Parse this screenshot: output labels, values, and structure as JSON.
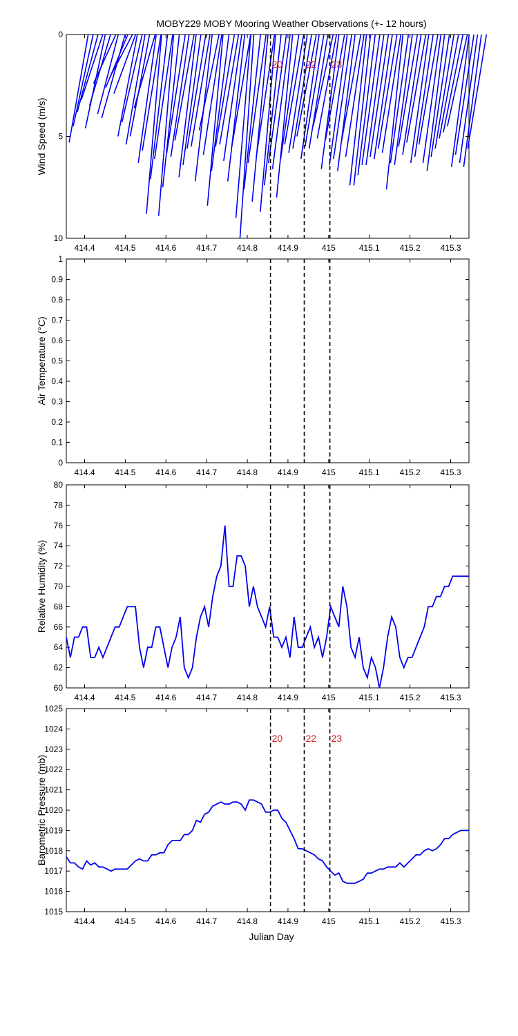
{
  "title": "MOBY229 MOBY Mooring Weather Observations (+- 12 hours)",
  "xlabel": "Julian Day",
  "xlim": [
    414.355,
    415.345
  ],
  "xticks": [
    "414.4",
    "414.5",
    "414.6",
    "414.7",
    "414.8",
    "414.9",
    "415",
    "415.1",
    "415.2",
    "415.3"
  ],
  "xtick_values": [
    414.4,
    414.5,
    414.6,
    414.7,
    414.8,
    414.9,
    415.0,
    415.1,
    415.2,
    415.3
  ],
  "markers": [
    {
      "x": 414.857,
      "label": "20"
    },
    {
      "x": 414.94,
      "label": "22"
    },
    {
      "x": 415.003,
      "label": "23"
    }
  ],
  "colors": {
    "series": "#0000ee",
    "marker_text": "#cc2222",
    "axis": "#000000"
  },
  "chart_data": [
    {
      "type": "line",
      "variant": "wind-stick",
      "ylabel": "Wind Speed (m/s)",
      "ylim": [
        10,
        0
      ],
      "yticks": [
        "0",
        "5",
        "10"
      ],
      "ytick_values": [
        0,
        5,
        10
      ],
      "series": [
        {
          "x": [
            414.362,
            414.372,
            414.382,
            414.392,
            414.402,
            414.412,
            414.422,
            414.432,
            414.442,
            414.452,
            414.462,
            414.472,
            414.482,
            414.492,
            414.502,
            414.512,
            414.522,
            414.532,
            414.542,
            414.552,
            414.562,
            414.572,
            414.582,
            414.592,
            414.602,
            414.612,
            414.622,
            414.632,
            414.642,
            414.652,
            414.662,
            414.672,
            414.682,
            414.692,
            414.702,
            414.712,
            414.722,
            414.732,
            414.742,
            414.752,
            414.762,
            414.772,
            414.782,
            414.792,
            414.802,
            414.812,
            414.822,
            414.832,
            414.842,
            414.852,
            414.862,
            414.872,
            414.882,
            414.892,
            414.902,
            414.912,
            414.922,
            414.932,
            414.942,
            414.952,
            414.962,
            414.972,
            414.982,
            414.992,
            415.002,
            415.012,
            415.022,
            415.032,
            415.042,
            415.052,
            415.062,
            415.072,
            415.082,
            415.092,
            415.102,
            415.112,
            415.122,
            415.132,
            415.142,
            415.152,
            415.162,
            415.172,
            415.182,
            415.192,
            415.202,
            415.212,
            415.222,
            415.232,
            415.242,
            415.252,
            415.262,
            415.272,
            415.282,
            415.292,
            415.302,
            415.312,
            415.322,
            415.332,
            415.342
          ],
          "y": [
            5.3,
            4.5,
            3.8,
            3.2,
            4.6,
            3.5,
            2.4,
            3.9,
            4.1,
            2.6,
            2.1,
            2.9,
            5.0,
            4.3,
            5.4,
            5.0,
            3.6,
            6.3,
            5.7,
            8.8,
            7.1,
            6.1,
            8.9,
            7.5,
            5.8,
            6.0,
            5.2,
            7.0,
            6.4,
            5.6,
            5.5,
            7.2,
            4.7,
            5.9,
            8.4,
            6.7,
            5.5,
            5.4,
            6.2,
            7.2,
            5.5,
            9.0,
            10.0,
            7.6,
            6.3,
            8.2,
            6.0,
            8.7,
            7.4,
            6.3,
            6.6,
            8.0,
            6.1,
            5.4,
            5.8,
            5.6,
            5.0,
            6.1,
            5.5,
            5.6,
            4.5,
            5.1,
            6.6,
            5.2,
            6.4,
            6.1,
            6.7,
            5.2,
            6.0,
            7.4,
            7.4,
            6.9,
            6.4,
            6.4,
            6.0,
            6.1,
            5.6,
            5.8,
            7.6,
            6.3,
            6.4,
            5.5,
            5.9,
            5.3,
            6.3,
            6.0,
            5.4,
            6.3,
            6.7,
            6.0,
            5.6,
            5.1,
            4.8,
            4.5,
            6.5,
            5.9,
            6.3,
            6.5,
            5.6
          ],
          "direction_deg": [
            200,
            200,
            200,
            200,
            200,
            200,
            200,
            200,
            330,
            200,
            200,
            200,
            200,
            200,
            200,
            200,
            200,
            200,
            200,
            200,
            200,
            200,
            200,
            200,
            200,
            200,
            200,
            200,
            200,
            200,
            200,
            200,
            200,
            200,
            200,
            200,
            200,
            200,
            200,
            200,
            200,
            200,
            200,
            200,
            200,
            200,
            200,
            200,
            200,
            200,
            200,
            200,
            200,
            200,
            200,
            200,
            200,
            200,
            200,
            200,
            200,
            200,
            200,
            200,
            200,
            200,
            200,
            200,
            200,
            200,
            200,
            200,
            200,
            200,
            200,
            200,
            200,
            200,
            200,
            200,
            200,
            200,
            200,
            200,
            200,
            200,
            200,
            200,
            200,
            200,
            200,
            200,
            200,
            200,
            200,
            200,
            200,
            200,
            200
          ]
        }
      ]
    },
    {
      "type": "line",
      "ylabel": "Air Temperature (°C)",
      "ylim": [
        0,
        1
      ],
      "yticks": [
        "0",
        "0.1",
        "0.2",
        "0.3",
        "0.4",
        "0.5",
        "0.6",
        "0.7",
        "0.8",
        "0.9",
        "1"
      ],
      "ytick_values": [
        0,
        0.1,
        0.2,
        0.3,
        0.4,
        0.5,
        0.6,
        0.7,
        0.8,
        0.9,
        1
      ],
      "series": [
        {
          "x": [],
          "y": []
        }
      ]
    },
    {
      "type": "line",
      "ylabel": "Relative Humidity (%)",
      "ylim": [
        60,
        80
      ],
      "yticks": [
        "60",
        "62",
        "64",
        "66",
        "68",
        "70",
        "72",
        "74",
        "76",
        "78",
        "80"
      ],
      "ytick_values": [
        60,
        62,
        64,
        66,
        68,
        70,
        72,
        74,
        76,
        78,
        80
      ],
      "series": [
        {
          "x": [
            414.355,
            414.365,
            414.375,
            414.385,
            414.395,
            414.405,
            414.415,
            414.425,
            414.435,
            414.445,
            414.455,
            414.465,
            414.475,
            414.485,
            414.495,
            414.505,
            414.515,
            414.525,
            414.535,
            414.545,
            414.555,
            414.565,
            414.575,
            414.585,
            414.595,
            414.605,
            414.615,
            414.625,
            414.635,
            414.645,
            414.655,
            414.665,
            414.675,
            414.685,
            414.695,
            414.705,
            414.715,
            414.725,
            414.735,
            414.745,
            414.755,
            414.765,
            414.775,
            414.785,
            414.795,
            414.805,
            414.815,
            414.825,
            414.835,
            414.845,
            414.855,
            414.865,
            414.875,
            414.885,
            414.895,
            414.905,
            414.915,
            414.925,
            414.935,
            414.945,
            414.955,
            414.965,
            414.975,
            414.985,
            414.995,
            415.005,
            415.015,
            415.025,
            415.035,
            415.045,
            415.055,
            415.065,
            415.075,
            415.085,
            415.095,
            415.105,
            415.115,
            415.125,
            415.135,
            415.145,
            415.155,
            415.165,
            415.175,
            415.185,
            415.195,
            415.205,
            415.215,
            415.225,
            415.235,
            415.245,
            415.255,
            415.265,
            415.275,
            415.285,
            415.295,
            415.305,
            415.315,
            415.325,
            415.335,
            415.345
          ],
          "y": [
            65,
            63,
            65,
            65,
            66,
            66,
            63,
            63,
            64,
            63,
            64,
            65,
            66,
            66,
            67,
            68,
            68,
            68,
            64,
            62,
            64,
            64,
            66,
            66,
            64,
            62,
            64,
            65,
            67,
            62,
            61,
            62,
            65,
            67,
            68,
            66,
            69,
            71,
            72,
            76,
            70,
            70,
            73,
            73,
            72,
            68,
            70,
            68,
            67,
            66,
            68,
            65,
            65,
            64,
            65,
            63,
            67,
            64,
            64,
            65,
            66,
            64,
            65,
            63,
            65,
            68,
            67,
            66,
            70,
            68,
            64,
            63,
            65,
            62,
            61,
            63,
            62,
            60,
            62,
            65,
            67,
            66,
            63,
            62,
            63,
            63,
            64,
            65,
            66,
            68,
            68,
            69,
            69,
            70,
            70,
            71,
            71,
            71,
            71,
            71
          ]
        }
      ]
    },
    {
      "type": "line",
      "ylabel": "Barometric Pressure (mb)",
      "ylim": [
        1015,
        1025
      ],
      "yticks": [
        "1015",
        "1016",
        "1017",
        "1018",
        "1019",
        "1020",
        "1021",
        "1022",
        "1023",
        "1024",
        "1025"
      ],
      "ytick_values": [
        1015,
        1016,
        1017,
        1018,
        1019,
        1020,
        1021,
        1022,
        1023,
        1024,
        1025
      ],
      "series": [
        {
          "x": [
            414.355,
            414.365,
            414.375,
            414.385,
            414.395,
            414.405,
            414.415,
            414.425,
            414.435,
            414.445,
            414.455,
            414.465,
            414.475,
            414.485,
            414.495,
            414.505,
            414.515,
            414.525,
            414.535,
            414.545,
            414.555,
            414.565,
            414.575,
            414.585,
            414.595,
            414.605,
            414.615,
            414.625,
            414.635,
            414.645,
            414.655,
            414.665,
            414.675,
            414.685,
            414.695,
            414.705,
            414.715,
            414.725,
            414.735,
            414.745,
            414.755,
            414.765,
            414.775,
            414.785,
            414.795,
            414.805,
            414.815,
            414.825,
            414.835,
            414.845,
            414.855,
            414.865,
            414.875,
            414.885,
            414.895,
            414.905,
            414.915,
            414.925,
            414.935,
            414.945,
            414.955,
            414.965,
            414.975,
            414.985,
            414.995,
            415.005,
            415.015,
            415.025,
            415.035,
            415.045,
            415.055,
            415.065,
            415.075,
            415.085,
            415.095,
            415.105,
            415.115,
            415.125,
            415.135,
            415.145,
            415.155,
            415.165,
            415.175,
            415.185,
            415.195,
            415.205,
            415.215,
            415.225,
            415.235,
            415.245,
            415.255,
            415.265,
            415.275,
            415.285,
            415.295,
            415.305,
            415.315,
            415.325,
            415.335,
            415.345
          ],
          "y": [
            1017.7,
            1017.4,
            1017.4,
            1017.2,
            1017.1,
            1017.5,
            1017.3,
            1017.4,
            1017.2,
            1017.2,
            1017.1,
            1017.0,
            1017.1,
            1017.1,
            1017.1,
            1017.1,
            1017.3,
            1017.5,
            1017.6,
            1017.5,
            1017.5,
            1017.8,
            1017.8,
            1017.9,
            1017.9,
            1018.3,
            1018.5,
            1018.5,
            1018.5,
            1018.8,
            1018.8,
            1019.0,
            1019.5,
            1019.4,
            1019.8,
            1019.9,
            1020.2,
            1020.3,
            1020.4,
            1020.3,
            1020.3,
            1020.4,
            1020.4,
            1020.3,
            1020.0,
            1020.5,
            1020.5,
            1020.4,
            1020.3,
            1019.9,
            1019.9,
            1020.0,
            1020.0,
            1019.6,
            1019.4,
            1019.0,
            1018.6,
            1018.1,
            1018.1,
            1018.0,
            1017.9,
            1017.8,
            1017.6,
            1017.5,
            1017.2,
            1017.0,
            1016.8,
            1016.9,
            1016.5,
            1016.4,
            1016.4,
            1016.4,
            1016.5,
            1016.6,
            1016.9,
            1016.9,
            1017.0,
            1017.1,
            1017.1,
            1017.2,
            1017.2,
            1017.2,
            1017.4,
            1017.2,
            1017.4,
            1017.6,
            1017.8,
            1017.8,
            1018.0,
            1018.1,
            1018.0,
            1018.1,
            1018.3,
            1018.6,
            1018.6,
            1018.8,
            1018.9,
            1019.0,
            1019.0,
            1019.0
          ]
        }
      ]
    }
  ]
}
